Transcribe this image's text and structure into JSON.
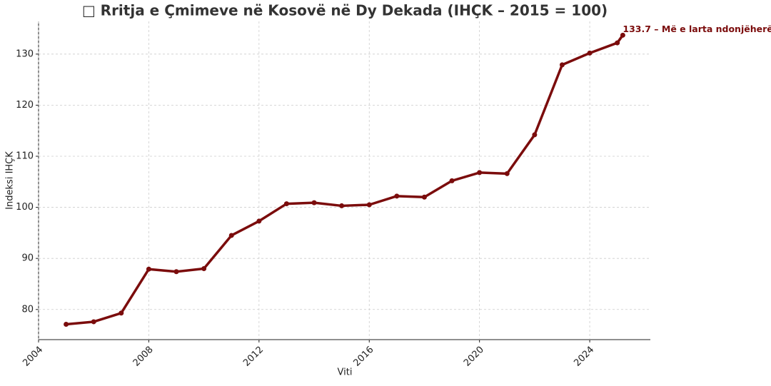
{
  "chart_data": {
    "type": "line",
    "title": "□ Rritja e Çmimeve në Kosovë në Dy Dekada (IHÇK – 2015 = 100)",
    "xlabel": "Viti",
    "ylabel": "Indeksi IHÇK",
    "x": [
      2005,
      2006,
      2007,
      2008,
      2009,
      2010,
      2011,
      2012,
      2013,
      2014,
      2015,
      2016,
      2017,
      2018,
      2019,
      2020,
      2021,
      2022,
      2023,
      2024,
      2025,
      2025.2
    ],
    "series": [
      {
        "name": "IHÇK",
        "color": "#7b0c0c",
        "values": [
          77.1,
          77.6,
          79.3,
          87.9,
          87.4,
          88.0,
          94.5,
          97.3,
          100.7,
          100.9,
          100.3,
          100.5,
          102.2,
          102.0,
          105.2,
          106.8,
          106.6,
          114.2,
          127.9,
          130.2,
          132.2,
          133.7
        ]
      }
    ],
    "annotation": "133.7 – Më e larta ndonjëherë",
    "xlim": [
      2004,
      2026.2
    ],
    "ylim": [
      74.1,
      136.4
    ],
    "xticks": [
      2004,
      2008,
      2012,
      2016,
      2020,
      2024
    ],
    "yticks": [
      80,
      90,
      100,
      110,
      120,
      130
    ],
    "grid": true
  }
}
